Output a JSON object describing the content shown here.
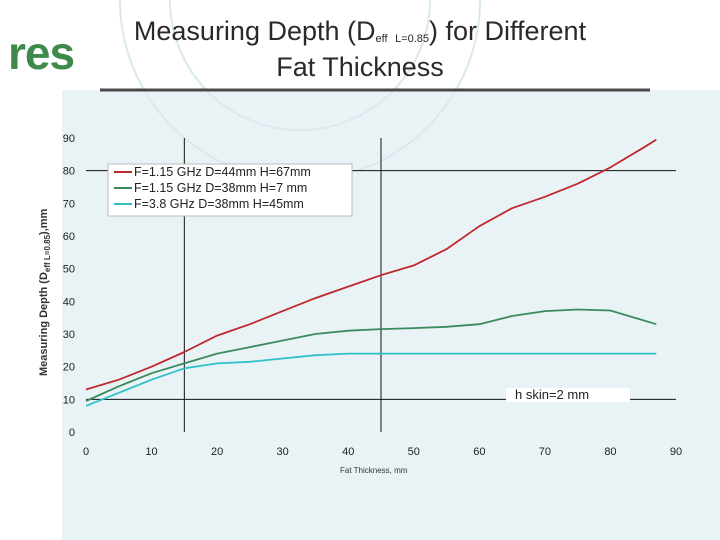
{
  "slide": {
    "logo_text": "res",
    "title_line1_pre": "Measuring Depth (D",
    "title_sub_eff": "eff",
    "title_sub_l": "L=0.85",
    "title_line1_post": ") for Different",
    "title_line2": "Fat Thickness",
    "colors": {
      "accent_green": "#3d8a4a",
      "panel": "#e8f2f5"
    }
  },
  "chart_data": {
    "type": "line",
    "xlabel": "Fat Thickness, mm",
    "ylabel_pre": "Measuring Depth (D",
    "ylabel_sub": "eff L=0.85",
    "ylabel_post": "),mm",
    "xlim": [
      0,
      90
    ],
    "ylim": [
      0,
      90
    ],
    "xticks": [
      0,
      10,
      20,
      30,
      40,
      50,
      60,
      70,
      80,
      90
    ],
    "yticks": [
      0,
      10,
      20,
      30,
      40,
      50,
      60,
      70,
      80,
      90
    ],
    "legend_position": "top-left",
    "series": [
      {
        "name": "F=1.15 GHz D=44mm H=67mm",
        "color": "#c0282a",
        "x": [
          0,
          5,
          10,
          15,
          20,
          25,
          30,
          35,
          40,
          45,
          50,
          55,
          60,
          65,
          70,
          75,
          80,
          85,
          87
        ],
        "y": [
          13,
          16,
          20,
          24.5,
          29.5,
          33,
          37,
          41,
          44.5,
          48,
          51,
          56,
          63,
          68.5,
          72,
          76,
          81,
          87,
          89.5
        ]
      },
      {
        "name": "F=1.15 GHz D=38mm H=7 mm",
        "color": "#3a8a5e",
        "x": [
          0,
          5,
          10,
          15,
          20,
          25,
          30,
          35,
          40,
          45,
          50,
          55,
          60,
          65,
          70,
          75,
          80,
          87
        ],
        "y": [
          9.5,
          14,
          18,
          21,
          24,
          26,
          28,
          30,
          31,
          31.5,
          31.8,
          32.2,
          33,
          35.5,
          37,
          37.5,
          37.2,
          33
        ]
      },
      {
        "name": "F=3.8 GHz D=38mm H=45mm",
        "color": "#30c0c8",
        "x": [
          0,
          5,
          10,
          15,
          20,
          25,
          30,
          35,
          40,
          45,
          50,
          55,
          60,
          65,
          70,
          75,
          80,
          87
        ],
        "y": [
          8,
          12,
          16,
          19.5,
          21,
          21.5,
          22.5,
          23.5,
          24,
          24,
          24,
          24,
          24,
          24,
          24,
          24,
          24,
          24
        ]
      }
    ],
    "reference_lines": {
      "vertical_x": [
        15,
        45
      ],
      "horizontal_y": [
        10,
        80
      ]
    },
    "annotation": "h skin=2 mm"
  }
}
